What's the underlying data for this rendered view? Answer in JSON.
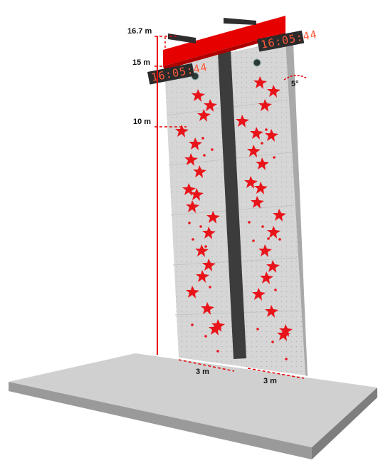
{
  "heights": {
    "top": "16.7 m",
    "mid": "15 m",
    "low": "10 m"
  },
  "angle": "5°",
  "widths": {
    "left": "3 m",
    "right": "3 m"
  },
  "timers": {
    "left": "16:05:44",
    "right": "16:05:44"
  },
  "colors": {
    "accent_red": "#e60000",
    "wall_gray": "#d5d5d5",
    "floor_gray": "#cfcfcf",
    "channel_dark": "#3c3c3c"
  }
}
